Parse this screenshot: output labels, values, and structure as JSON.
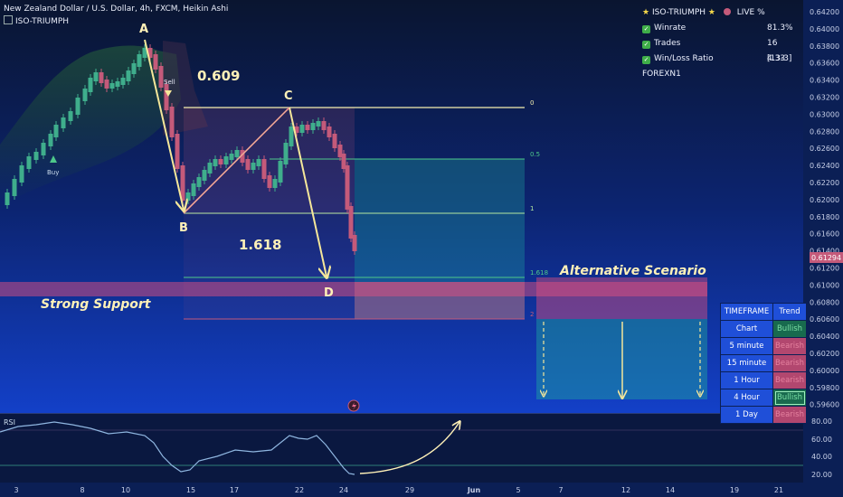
{
  "header": {
    "title": "New Zealand Dollar / U.S. Dollar, 4h, FXCM, Heikin Ashi",
    "indicator": "ISO-TRIUMPH"
  },
  "stats": {
    "title": "ISO-TRIUMPH",
    "live": "LIVE %",
    "rows": [
      {
        "label": "Winrate",
        "value": "81.3%"
      },
      {
        "label": "Trades",
        "value": "16 [13-3]"
      },
      {
        "label": "Win/Loss Ratio",
        "value": "4.33"
      }
    ],
    "footer": "FOREXN1"
  },
  "pattern": {
    "points": [
      "A",
      "B",
      "C",
      "D"
    ],
    "ratio_ab": "0.609",
    "ratio_cd": "1.618",
    "sell": "Sell",
    "buy": "Buy"
  },
  "fib_levels": [
    "0",
    "0.5",
    "1",
    "1.618",
    "2"
  ],
  "labels": {
    "support": "Strong Support",
    "alternative": "Alternative Scenario"
  },
  "price_axis": [
    "0.64200",
    "0.64000",
    "0.63800",
    "0.63600",
    "0.63400",
    "0.63200",
    "0.63000",
    "0.62800",
    "0.62600",
    "0.62400",
    "0.62200",
    "0.62000",
    "0.61800",
    "0.61600",
    "0.61400",
    "0.61200",
    "0.61000",
    "0.60800",
    "0.60600",
    "0.60400",
    "0.60200",
    "0.60000",
    "0.59800",
    "0.59600"
  ],
  "current_price": "0.61294",
  "rsi": {
    "label": "RSI",
    "axis": [
      "80.00",
      "60.00",
      "40.00",
      "20.00"
    ]
  },
  "time_axis": [
    "3",
    "8",
    "10",
    "15",
    "17",
    "22",
    "24",
    "29",
    "Jun",
    "5",
    "7",
    "12",
    "14",
    "19",
    "21"
  ],
  "trend_table": {
    "headers": [
      "TIMEFRAME",
      "Trend"
    ],
    "rows": [
      {
        "tf": "Chart",
        "trend": "Bullish"
      },
      {
        "tf": "5 minute",
        "trend": "Bearish"
      },
      {
        "tf": "15 minute",
        "trend": "Bearish"
      },
      {
        "tf": "1 Hour",
        "trend": "Bearish"
      },
      {
        "tf": "4 Hour",
        "trend": "Bullish"
      },
      {
        "tf": "1 Day",
        "trend": "Bearish"
      }
    ]
  },
  "colors": {
    "up": "#3fae8c",
    "down": "#c45a7a",
    "fib_line": "#f5f0b0",
    "fib_green": "#4ec98a",
    "accent_yellow": "#f5e79a"
  }
}
